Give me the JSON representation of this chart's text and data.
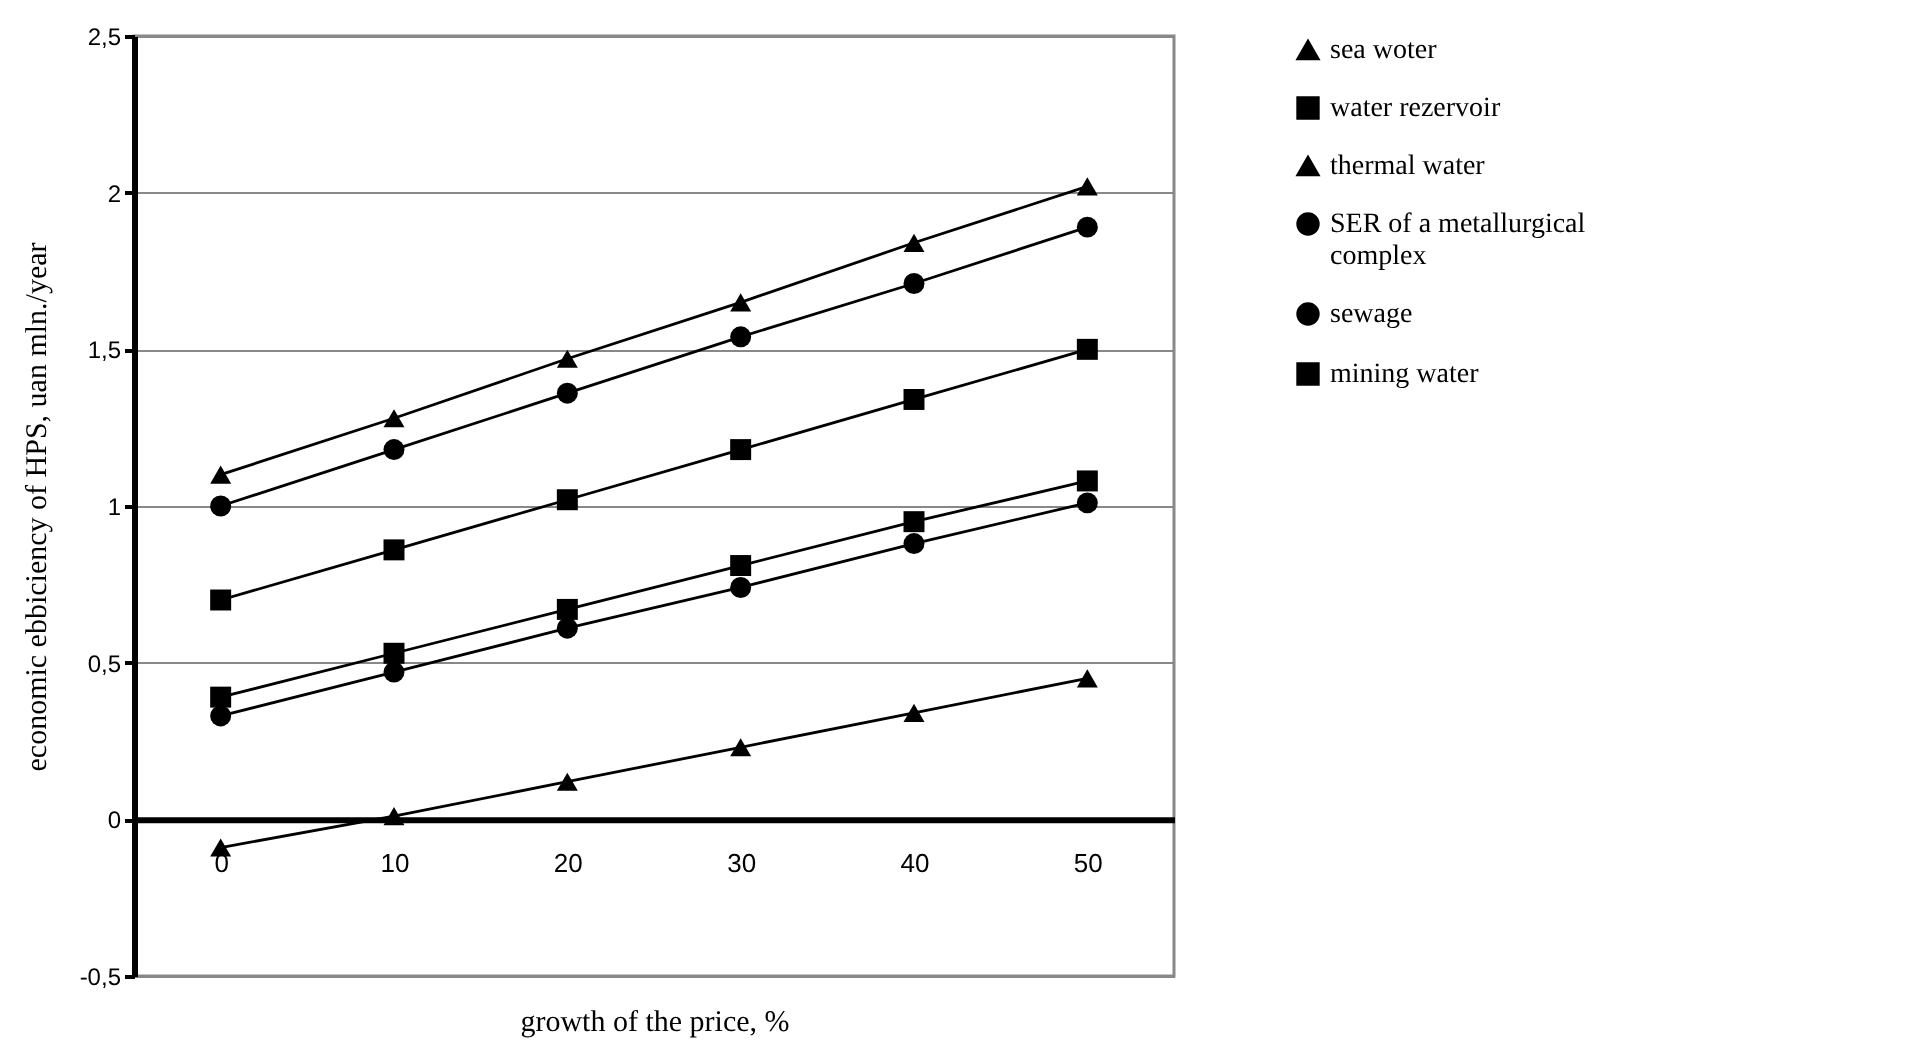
{
  "chart_data": {
    "type": "line",
    "xlabel": "growth of the price, %",
    "ylabel": "economic ebbiciency of HPS, uan mln./year",
    "categories": [
      "0",
      "10",
      "20",
      "30",
      "40",
      "50"
    ],
    "series": [
      {
        "name": "sea woter",
        "color": "#000000",
        "marker": "triangle",
        "values": [
          -0.09,
          0.01,
          0.12,
          0.23,
          0.34,
          0.45
        ]
      },
      {
        "name": "water rezervoir",
        "color": "#000000",
        "marker": "square",
        "values": [
          0.39,
          0.53,
          0.67,
          0.81,
          0.95,
          1.08
        ]
      },
      {
        "name": "thermal water",
        "color": "#000000",
        "marker": "triangle",
        "values": [
          1.1,
          1.28,
          1.47,
          1.65,
          1.84,
          2.02
        ]
      },
      {
        "name": "SER of a metallurgical complex",
        "color": "#000000",
        "marker": "circle",
        "values": [
          0.33,
          0.47,
          0.61,
          0.74,
          0.88,
          1.01
        ]
      },
      {
        "name": "sewage",
        "color": "#000000",
        "marker": "circle",
        "values": [
          1.0,
          1.18,
          1.36,
          1.54,
          1.71,
          1.89
        ]
      },
      {
        "name": "mining water",
        "color": "#000000",
        "marker": "square",
        "values": [
          0.7,
          0.86,
          1.02,
          1.18,
          1.34,
          1.5
        ]
      }
    ],
    "ylim": [
      -0.5,
      2.5
    ],
    "yticks": [
      {
        "value": -0.5,
        "label": "-0,5"
      },
      0,
      {
        "value": 0.5,
        "label": "0,5"
      },
      1,
      {
        "value": 1.5,
        "label": "1,5"
      },
      2,
      {
        "value": 2.5,
        "label": "2,5"
      }
    ],
    "grid": "y",
    "legend": "right",
    "line_style": "solid"
  }
}
